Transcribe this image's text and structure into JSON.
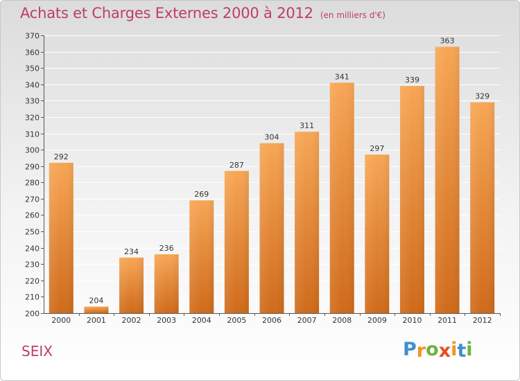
{
  "colors": {
    "title": "#bf3b6f",
    "bar_light": "#f7a655",
    "bar_dark": "#cf6a1a",
    "axis": "#555555",
    "grid": "#ffffff"
  },
  "header": {
    "title": "Achats et Charges Externes 2000 à 2012",
    "unit": "(en milliers d'€)"
  },
  "footer": {
    "commune": "SEIX",
    "logo": {
      "letters": [
        "P",
        "r",
        "o",
        "x",
        "i",
        "t",
        "i"
      ],
      "letter_colors": [
        "#3f8fd0",
        "#f39322",
        "#6cb33f",
        "#e94e1b",
        "#f39322",
        "#3f8fd0",
        "#6cb33f"
      ]
    }
  },
  "chart_data": {
    "type": "bar",
    "title": "Achats et Charges Externes 2000 à 2012",
    "subtitle": "(en milliers d'€)",
    "xlabel": "",
    "ylabel": "",
    "categories": [
      "2000",
      "2001",
      "2002",
      "2003",
      "2004",
      "2005",
      "2006",
      "2007",
      "2008",
      "2009",
      "2010",
      "2011",
      "2012"
    ],
    "values": [
      292,
      204,
      234,
      236,
      269,
      287,
      304,
      311,
      341,
      297,
      339,
      363,
      329
    ],
    "ylim": [
      200,
      370
    ],
    "yticks": [
      200,
      210,
      220,
      230,
      240,
      250,
      260,
      270,
      280,
      290,
      300,
      310,
      320,
      330,
      340,
      350,
      360,
      370
    ],
    "grid": true,
    "legend": "none"
  }
}
